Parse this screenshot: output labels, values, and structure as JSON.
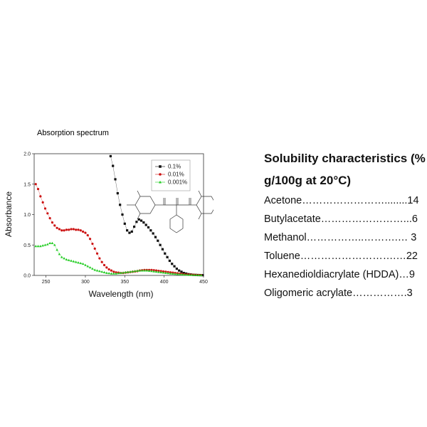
{
  "chart_data": {
    "type": "scatter",
    "title": "Absorption spectrum",
    "xlabel": "Wavelength (nm)",
    "ylabel": "Absorbance",
    "xlim": [
      235,
      450
    ],
    "ylim": [
      0,
      2.0
    ],
    "x_ticks": [
      "250",
      "300",
      "350",
      "400",
      "450"
    ],
    "y_ticks": [
      "0.0",
      "0.5",
      "1.0",
      "1.5",
      "2.0"
    ],
    "legend_position": "top-right",
    "series": [
      {
        "name": "0.1%",
        "color": "#111111",
        "marker": "square",
        "x": [
          332,
          335,
          338,
          341,
          344,
          347,
          350,
          353,
          356,
          359,
          362,
          365,
          368,
          371,
          374,
          377,
          380,
          383,
          386,
          389,
          392,
          395,
          398,
          401,
          404,
          407,
          410,
          413,
          416,
          419,
          422,
          425,
          428,
          431,
          434,
          437,
          440,
          443,
          446,
          449
        ],
        "values": [
          1.96,
          1.8,
          1.58,
          1.35,
          1.16,
          1.0,
          0.85,
          0.74,
          0.7,
          0.72,
          0.8,
          0.88,
          0.92,
          0.9,
          0.87,
          0.83,
          0.79,
          0.74,
          0.69,
          0.63,
          0.57,
          0.5,
          0.43,
          0.36,
          0.3,
          0.24,
          0.19,
          0.15,
          0.11,
          0.08,
          0.06,
          0.04,
          0.03,
          0.02,
          0.015,
          0.01,
          0.008,
          0.006,
          0.005,
          0.004
        ]
      },
      {
        "name": "0.01%",
        "color": "#cc1111",
        "marker": "circle",
        "x": [
          237,
          240,
          243,
          246,
          249,
          252,
          255,
          258,
          261,
          264,
          267,
          270,
          273,
          276,
          279,
          282,
          285,
          288,
          291,
          294,
          297,
          300,
          303,
          306,
          309,
          312,
          315,
          318,
          321,
          324,
          327,
          330,
          333,
          336,
          339,
          342,
          345,
          348,
          351,
          354,
          357,
          360,
          363,
          366,
          369,
          372,
          375,
          378,
          381,
          384,
          387,
          390,
          393,
          396,
          399,
          402,
          405,
          408,
          411,
          414,
          417,
          420,
          423,
          426,
          429,
          432,
          435,
          438,
          441,
          444,
          447
        ],
        "values": [
          1.5,
          1.42,
          1.3,
          1.2,
          1.1,
          1.02,
          0.94,
          0.87,
          0.82,
          0.78,
          0.76,
          0.74,
          0.74,
          0.75,
          0.75,
          0.76,
          0.76,
          0.75,
          0.75,
          0.74,
          0.72,
          0.7,
          0.66,
          0.6,
          0.52,
          0.44,
          0.36,
          0.28,
          0.22,
          0.17,
          0.13,
          0.1,
          0.08,
          0.06,
          0.05,
          0.045,
          0.04,
          0.04,
          0.045,
          0.05,
          0.055,
          0.06,
          0.065,
          0.07,
          0.08,
          0.085,
          0.09,
          0.09,
          0.09,
          0.09,
          0.085,
          0.08,
          0.075,
          0.07,
          0.065,
          0.06,
          0.055,
          0.05,
          0.045,
          0.04,
          0.035,
          0.03,
          0.025,
          0.02,
          0.018,
          0.015,
          0.012,
          0.01,
          0.008,
          0.006,
          0.005
        ]
      },
      {
        "name": "0.001%",
        "color": "#22cc22",
        "marker": "triangle",
        "x": [
          237,
          240,
          243,
          246,
          249,
          252,
          255,
          258,
          261,
          264,
          267,
          270,
          273,
          276,
          279,
          282,
          285,
          288,
          291,
          294,
          297,
          300,
          303,
          306,
          309,
          312,
          315,
          318,
          321,
          324,
          327,
          330,
          333,
          336,
          339,
          342,
          345,
          348,
          351,
          354,
          357,
          360,
          363,
          366,
          369,
          372,
          375,
          378,
          381,
          384,
          387,
          390,
          393,
          396,
          399,
          402,
          405,
          408,
          411,
          414,
          417,
          420,
          423,
          426,
          429,
          432,
          435,
          438,
          441,
          444,
          447
        ],
        "values": [
          0.48,
          0.48,
          0.48,
          0.49,
          0.5,
          0.51,
          0.53,
          0.53,
          0.5,
          0.42,
          0.35,
          0.3,
          0.28,
          0.26,
          0.25,
          0.24,
          0.23,
          0.22,
          0.21,
          0.2,
          0.19,
          0.17,
          0.15,
          0.13,
          0.11,
          0.09,
          0.08,
          0.07,
          0.06,
          0.05,
          0.04,
          0.035,
          0.03,
          0.03,
          0.03,
          0.035,
          0.04,
          0.045,
          0.05,
          0.055,
          0.06,
          0.065,
          0.07,
          0.075,
          0.08,
          0.08,
          0.08,
          0.08,
          0.075,
          0.07,
          0.065,
          0.06,
          0.055,
          0.05,
          0.045,
          0.04,
          0.035,
          0.03,
          0.027,
          0.024,
          0.021,
          0.018,
          0.015,
          0.012,
          0.01,
          0.008,
          0.007,
          0.006,
          0.005,
          0.004,
          0.004
        ]
      }
    ]
  },
  "solubility": {
    "heading_line1": "Solubility characteristics (%",
    "heading_line2": "g/100g at 20°C)",
    "rows": [
      "Acetone……………………........14",
      "Butylacetate……………………...6",
      "Methanol……………..……….… 3",
      "Toluene……………………….…22",
      "Hexanedioldiacrylate (HDDA)…9",
      "Oligomeric acrylate…………….3"
    ]
  }
}
